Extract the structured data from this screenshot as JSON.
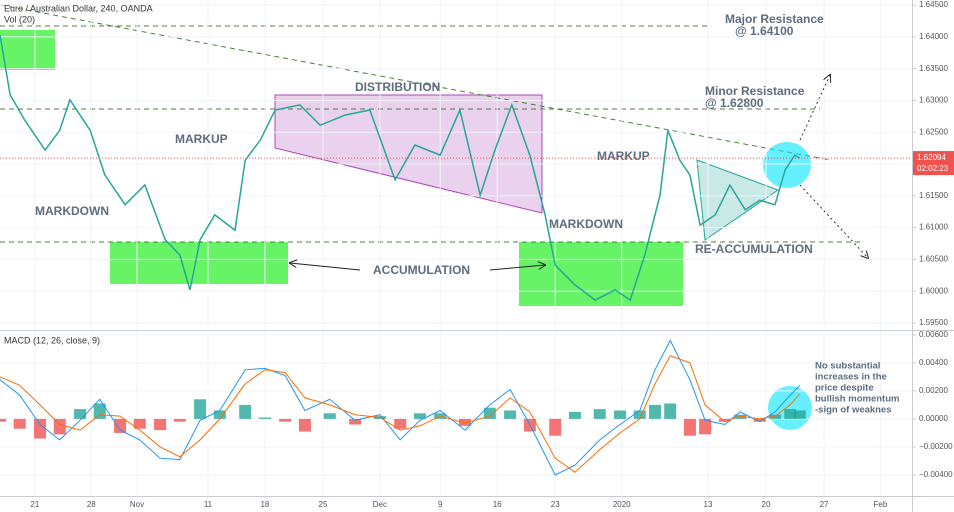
{
  "chart_data": [
    {
      "type": "line",
      "title": "Euro / Australian Dollar, 240, OANDA",
      "indicator": "Vol (20)",
      "color": "#26a69a",
      "x": [
        -0.62,
        -0.44,
        -0.18,
        0.18,
        0.44,
        0.62,
        0.98,
        1.24,
        1.6,
        1.95,
        2.31,
        2.57,
        2.75,
        2.93,
        3.19,
        3.55,
        3.73,
        4.0,
        4.26,
        4.7,
        5.06,
        5.5,
        5.94,
        6.39,
        6.74,
        7.19,
        7.54,
        7.9,
        8.16,
        8.46,
        8.78,
        9.05,
        9.23,
        9.58,
        9.94,
        10.29,
        10.56,
        10.82,
        11.09,
        11.23,
        11.44,
        11.62,
        11.8,
        12.07,
        12.33,
        12.6,
        12.86,
        13.13,
        13.31,
        13.48,
        13.57
      ],
      "values": [
        1.6403,
        1.6309,
        1.6269,
        1.6222,
        1.6253,
        1.6301,
        1.6253,
        1.6183,
        1.6136,
        1.6167,
        1.6081,
        1.6057,
        1.6002,
        1.6081,
        1.612,
        1.6096,
        1.6206,
        1.6238,
        1.6285,
        1.6293,
        1.6261,
        1.6277,
        1.6285,
        1.6175,
        1.623,
        1.6214,
        1.6285,
        1.6151,
        1.6222,
        1.6293,
        1.6214,
        1.612,
        1.6041,
        1.601,
        1.5986,
        1.6002,
        1.5986,
        1.6057,
        1.6151,
        1.6253,
        1.6206,
        1.6183,
        1.6104,
        1.612,
        1.6167,
        1.6128,
        1.6143,
        1.6136,
        1.6191,
        1.6214,
        1.6209
      ],
      "xlim": [
        -0.62,
        15.56
      ],
      "xticks": [
        {
          "value": 0,
          "label": "21"
        },
        {
          "value": 1,
          "label": "28"
        },
        {
          "value": 1.81,
          "label": "Nov"
        },
        {
          "value": 3.07,
          "label": "11"
        },
        {
          "value": 4.08,
          "label": "18"
        },
        {
          "value": 5.11,
          "label": "25"
        },
        {
          "value": 6.12,
          "label": "Dec"
        },
        {
          "value": 7.19,
          "label": "9"
        },
        {
          "value": 8.2,
          "label": "16"
        },
        {
          "value": 9.23,
          "label": "23"
        },
        {
          "value": 10.41,
          "label": "2020"
        },
        {
          "value": 11.94,
          "label": "13"
        },
        {
          "value": 12.97,
          "label": "20"
        },
        {
          "value": 14.0,
          "label": "27"
        },
        {
          "value": 15.0,
          "label": "Feb"
        }
      ],
      "ylim": [
        1.5939,
        1.6458
      ],
      "yticks": [
        {
          "value": 1.645,
          "label": "1.64500"
        },
        {
          "value": 1.64,
          "label": "1.64000"
        },
        {
          "value": 1.635,
          "label": "1.63500"
        },
        {
          "value": 1.63,
          "label": "1.63000"
        },
        {
          "value": 1.625,
          "label": "1.62500"
        },
        {
          "value": 1.62,
          "label": "1.62000"
        },
        {
          "value": 1.615,
          "label": "1.61500"
        },
        {
          "value": 1.61,
          "label": "1.61000"
        },
        {
          "value": 1.605,
          "label": "1.60500"
        },
        {
          "value": 1.6,
          "label": "1.60000"
        },
        {
          "value": 1.595,
          "label": "1.59500"
        }
      ],
      "grid": true,
      "last_price": 1.62094,
      "countdown": "02:02:23",
      "last_price_color": "#ef5350"
    },
    {
      "type": "macd",
      "title": "MACD (12, 26, close, 9)",
      "x": [
        -0.62,
        -0.27,
        0.09,
        0.44,
        0.8,
        1.15,
        1.51,
        1.86,
        2.22,
        2.57,
        2.93,
        3.28,
        3.73,
        4.08,
        4.44,
        4.79,
        5.23,
        5.68,
        6.12,
        6.48,
        6.83,
        7.19,
        7.63,
        8.07,
        8.43,
        8.78,
        9.23,
        9.58,
        10.02,
        10.38,
        10.73,
        11.0,
        11.27,
        11.62,
        11.89,
        12.24,
        12.51,
        12.86,
        13.13,
        13.4,
        13.57
      ],
      "macd": {
        "color": "#2196f3",
        "values": [
          0.0028,
          0.0017,
          -0.0004,
          -0.0015,
          -0.0001,
          0.0014,
          -0.0008,
          -0.0015,
          -0.0028,
          -0.0029,
          -0.0001,
          0.0006,
          0.0035,
          0.0036,
          0.0031,
          0.0006,
          0.0014,
          -0.0001,
          0.0003,
          -0.0015,
          -0.0001,
          0.0006,
          -0.0008,
          0.001,
          0.0021,
          -0.0004,
          -0.004,
          -0.0033,
          -0.0015,
          -0.0004,
          0.0006,
          0.0035,
          0.0056,
          0.0028,
          -0.0001,
          -0.0004,
          0.0005,
          -0.0002,
          0.0005,
          0.0017,
          0.0024
        ]
      },
      "signal": {
        "color": "#ff6d00",
        "values": [
          0.003,
          0.0024,
          0.001,
          -0.0004,
          -0.0008,
          0.0003,
          0.0002,
          -0.0008,
          -0.002,
          -0.0027,
          -0.0015,
          0.0,
          0.0025,
          0.0035,
          0.0033,
          0.0015,
          0.001,
          0.0003,
          0.0001,
          -0.0008,
          -0.0005,
          0.0002,
          -0.0003,
          0.0002,
          0.0015,
          0.0005,
          -0.0028,
          -0.0038,
          -0.0022,
          -0.001,
          0.0,
          0.0025,
          0.0045,
          0.004,
          0.001,
          -0.0002,
          0.0002,
          0.0,
          0.0002,
          0.001,
          0.0018
        ]
      },
      "histogram": {
        "up_color": "#26a69a",
        "down_color": "#ef5350",
        "values": [
          -0.0002,
          -0.0007,
          -0.0014,
          -0.0011,
          0.0007,
          0.0011,
          -0.001,
          -0.0007,
          -0.0008,
          -0.0002,
          0.0014,
          0.0006,
          0.001,
          0.0001,
          -0.0002,
          -0.0009,
          0.0004,
          -0.0004,
          0.0002,
          -0.0007,
          0.0004,
          0.0004,
          -0.0005,
          0.0008,
          0.0006,
          -0.0009,
          -0.0012,
          0.0005,
          0.0007,
          0.0006,
          0.0006,
          0.001,
          0.0011,
          -0.0012,
          -0.0011,
          -0.0002,
          0.0003,
          -0.0002,
          0.0003,
          0.0007,
          0.0006
        ]
      },
      "ylim": [
        -0.0055,
        0.0062
      ],
      "yticks": [
        {
          "value": 0.006,
          "label": "0.00600"
        },
        {
          "value": 0.004,
          "label": "0.00400"
        },
        {
          "value": 0.002,
          "label": "0.00200"
        },
        {
          "value": 0,
          "label": "0.00000"
        },
        {
          "value": -0.002,
          "label": "−0.00200"
        },
        {
          "value": -0.004,
          "label": "−0.00400"
        }
      ],
      "grid": true
    }
  ],
  "annotations": {
    "major_resistance": [
      "Major Resistance",
      "@ 1.64100"
    ],
    "minor_resistance": [
      "Minor Resistance",
      "@ 1.62800"
    ],
    "distribution": "DISTRIBUTION",
    "markup_1": "MARKUP",
    "markup_2": "MARKUP",
    "markdown_1": "MARKDOWN",
    "markdown_2": "MARKDOWN",
    "accumulation": "ACCUMULATION",
    "re_accumulation": "RE-ACCUMULATION",
    "note": [
      "No substantial",
      "increases in the",
      "price despite",
      "bullish momentum",
      "-sign of weaknes"
    ]
  }
}
